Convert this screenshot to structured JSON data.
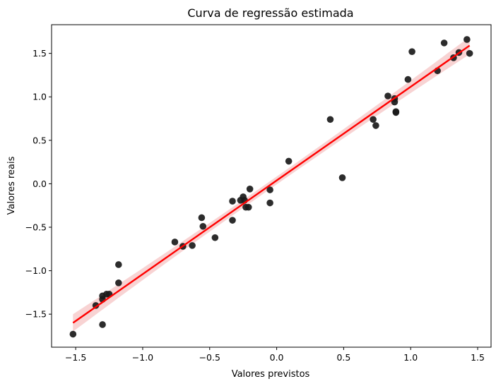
{
  "chart_data": {
    "type": "scatter",
    "title": "Curva de regressão estimada",
    "xlabel": "Valores previstos",
    "ylabel": "Valores reais",
    "xlim": [
      -1.68,
      1.6
    ],
    "ylim": [
      -1.88,
      1.83
    ],
    "x_ticks": [
      -1.5,
      -1.0,
      -0.5,
      0.0,
      0.5,
      1.0,
      1.5
    ],
    "x_tick_labels": [
      "−1.5",
      "−1.0",
      "−0.5",
      "0.0",
      "0.5",
      "1.0",
      "1.5"
    ],
    "y_ticks": [
      -1.5,
      -1.0,
      -0.5,
      0.0,
      0.5,
      1.0,
      1.5
    ],
    "y_tick_labels": [
      "−1.5",
      "−1.0",
      "−0.5",
      "0.0",
      "0.5",
      "1.0",
      "1.5"
    ],
    "grid": false,
    "points": [
      [
        -1.52,
        -1.73
      ],
      [
        -1.35,
        -1.4
      ],
      [
        -1.3,
        -1.29
      ],
      [
        -1.3,
        -1.33
      ],
      [
        -1.3,
        -1.62
      ],
      [
        -1.27,
        -1.27
      ],
      [
        -1.25,
        -1.27
      ],
      [
        -1.18,
        -0.93
      ],
      [
        -1.18,
        -1.14
      ],
      [
        -0.76,
        -0.67
      ],
      [
        -0.7,
        -0.72
      ],
      [
        -0.63,
        -0.71
      ],
      [
        -0.56,
        -0.39
      ],
      [
        -0.55,
        -0.49
      ],
      [
        -0.46,
        -0.62
      ],
      [
        -0.33,
        -0.2
      ],
      [
        -0.33,
        -0.42
      ],
      [
        -0.27,
        -0.19
      ],
      [
        -0.25,
        -0.15
      ],
      [
        -0.24,
        -0.19
      ],
      [
        -0.23,
        -0.27
      ],
      [
        -0.21,
        -0.27
      ],
      [
        -0.2,
        -0.06
      ],
      [
        -0.05,
        -0.07
      ],
      [
        -0.05,
        -0.22
      ],
      [
        0.09,
        0.26
      ],
      [
        0.4,
        0.74
      ],
      [
        0.49,
        0.07
      ],
      [
        0.72,
        0.74
      ],
      [
        0.74,
        0.67
      ],
      [
        0.83,
        1.01
      ],
      [
        0.88,
        0.94
      ],
      [
        0.88,
        0.98
      ],
      [
        0.89,
        0.82
      ],
      [
        0.89,
        0.83
      ],
      [
        0.98,
        1.2
      ],
      [
        1.01,
        1.52
      ],
      [
        1.2,
        1.3
      ],
      [
        1.25,
        1.62
      ],
      [
        1.32,
        1.45
      ],
      [
        1.36,
        1.51
      ],
      [
        1.42,
        1.66
      ],
      [
        1.44,
        1.5
      ]
    ],
    "regression_line": {
      "x": [
        -1.52,
        1.44
      ],
      "y": [
        -1.6,
        1.59
      ]
    },
    "point_color": "#1a1a1a",
    "line_color": "#ff0000",
    "band_color": "#f4b6b6"
  }
}
